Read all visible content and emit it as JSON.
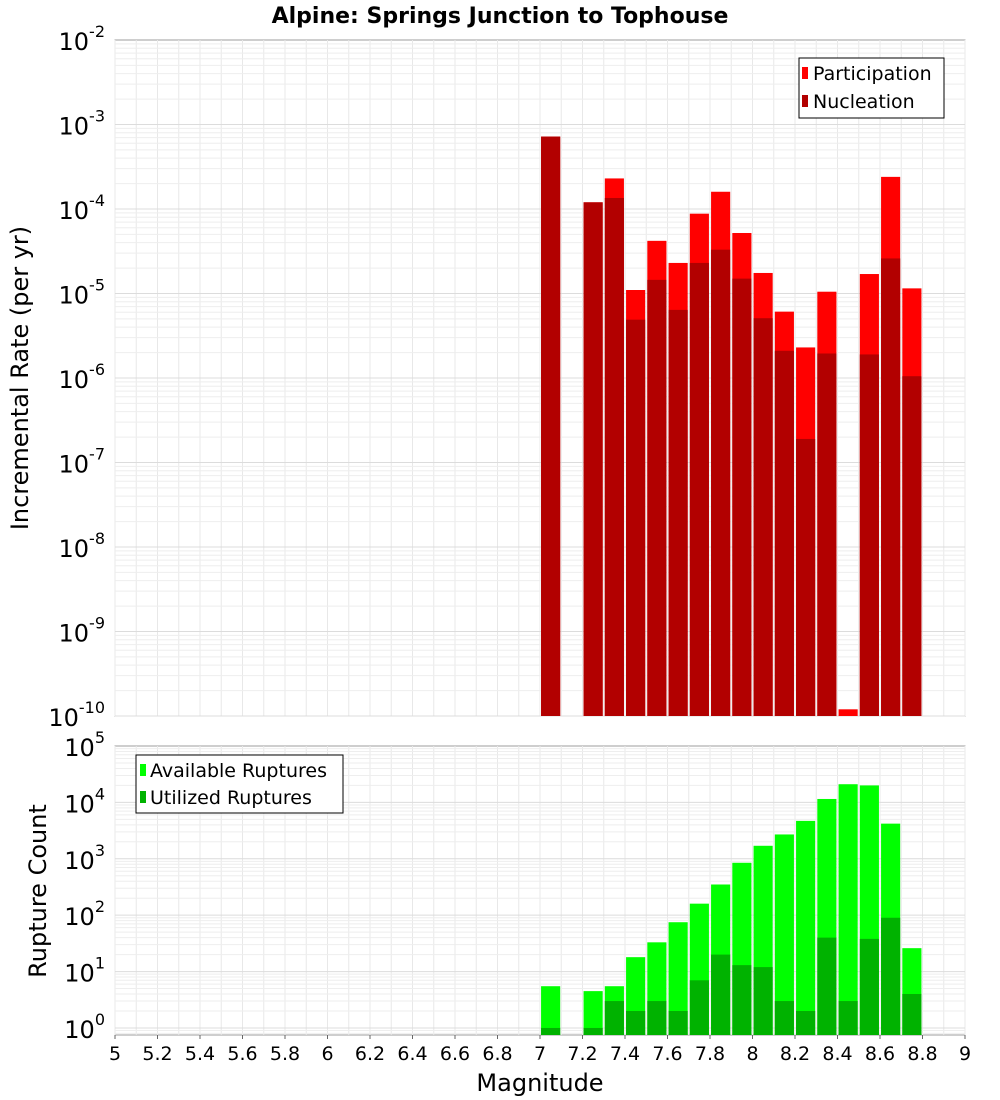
{
  "chart_data": [
    {
      "type": "bar",
      "title": "Alpine: Springs Junction to Tophouse",
      "xlabel": "Magnitude",
      "ylabel": "Incremental Rate (per yr)",
      "xlim": [
        5,
        9
      ],
      "ylim": [
        1e-10,
        0.01
      ],
      "y_scale": "log",
      "y_tick_exponents": [
        "-2",
        "-3",
        "-4",
        "-5",
        "-6",
        "-7",
        "-8",
        "-9",
        "-10"
      ],
      "y_tick_base": "10",
      "grid": true,
      "legend_position": "top-right",
      "colors": {
        "participation": "#ff0000",
        "nucleation": "#b20000"
      },
      "bar_width": 0.09,
      "series": [
        {
          "name": "Participation",
          "x": [
            7.05,
            7.25,
            7.35,
            7.45,
            7.55,
            7.65,
            7.75,
            7.85,
            7.95,
            8.05,
            8.15,
            8.25,
            8.35,
            8.45,
            8.55,
            8.65,
            8.75
          ],
          "values": [
            0.00072,
            0.00012,
            0.00023,
            1.1e-05,
            4.2e-05,
            2.3e-05,
            8.8e-05,
            0.00016,
            5.2e-05,
            1.75e-05,
            6.1e-06,
            2.3e-06,
            1.05e-05,
            1.2e-10,
            1.7e-05,
            0.00024,
            1.15e-05
          ]
        },
        {
          "name": "Nucleation",
          "x": [
            7.05,
            7.25,
            7.35,
            7.45,
            7.55,
            7.65,
            7.75,
            7.85,
            7.95,
            8.05,
            8.15,
            8.25,
            8.35,
            8.45,
            8.55,
            8.65,
            8.75
          ],
          "values": [
            0.00072,
            0.00012,
            0.000135,
            4.9e-06,
            1.45e-05,
            6.4e-06,
            2.3e-05,
            3.3e-05,
            1.5e-05,
            5.1e-06,
            2.1e-06,
            1.9e-07,
            1.95e-06,
            null,
            1.9e-06,
            2.6e-05,
            1.05e-06
          ]
        }
      ]
    },
    {
      "type": "bar",
      "xlabel": "Magnitude",
      "ylabel": "Rupture Count",
      "xlim": [
        5,
        9
      ],
      "ylim": [
        0.75,
        100000.0
      ],
      "y_scale": "log",
      "y_tick_exponents": [
        "5",
        "4",
        "3",
        "2",
        "1",
        "0"
      ],
      "y_tick_base": "10",
      "x_ticks": [
        "5",
        "5.2",
        "5.4",
        "5.6",
        "5.8",
        "6",
        "6.2",
        "6.4",
        "6.6",
        "6.8",
        "7",
        "7.2",
        "7.4",
        "7.6",
        "7.8",
        "8",
        "8.2",
        "8.4",
        "8.6",
        "8.8",
        "9"
      ],
      "grid": true,
      "legend_position": "top-left",
      "colors": {
        "available": "#00ff00",
        "utilized": "#00b200"
      },
      "bar_width": 0.09,
      "series": [
        {
          "name": "Available Ruptures",
          "x": [
            7.05,
            7.25,
            7.35,
            7.45,
            7.55,
            7.65,
            7.75,
            7.85,
            7.95,
            8.05,
            8.15,
            8.25,
            8.35,
            8.45,
            8.55,
            8.65,
            8.75
          ],
          "values": [
            5.5,
            4.5,
            5.5,
            18,
            33,
            75,
            160,
            350,
            850,
            1700,
            2700,
            4700,
            11500,
            21000,
            20000,
            4200,
            26
          ]
        },
        {
          "name": "Utilized Ruptures",
          "x": [
            7.05,
            7.25,
            7.35,
            7.45,
            7.55,
            7.65,
            7.75,
            7.85,
            7.95,
            8.05,
            8.15,
            8.25,
            8.35,
            8.45,
            8.55,
            8.65,
            8.75
          ],
          "values": [
            1,
            1,
            3,
            2,
            3,
            2,
            7,
            20,
            13,
            12,
            3,
            2,
            40,
            3,
            38,
            90,
            4
          ]
        }
      ]
    }
  ]
}
